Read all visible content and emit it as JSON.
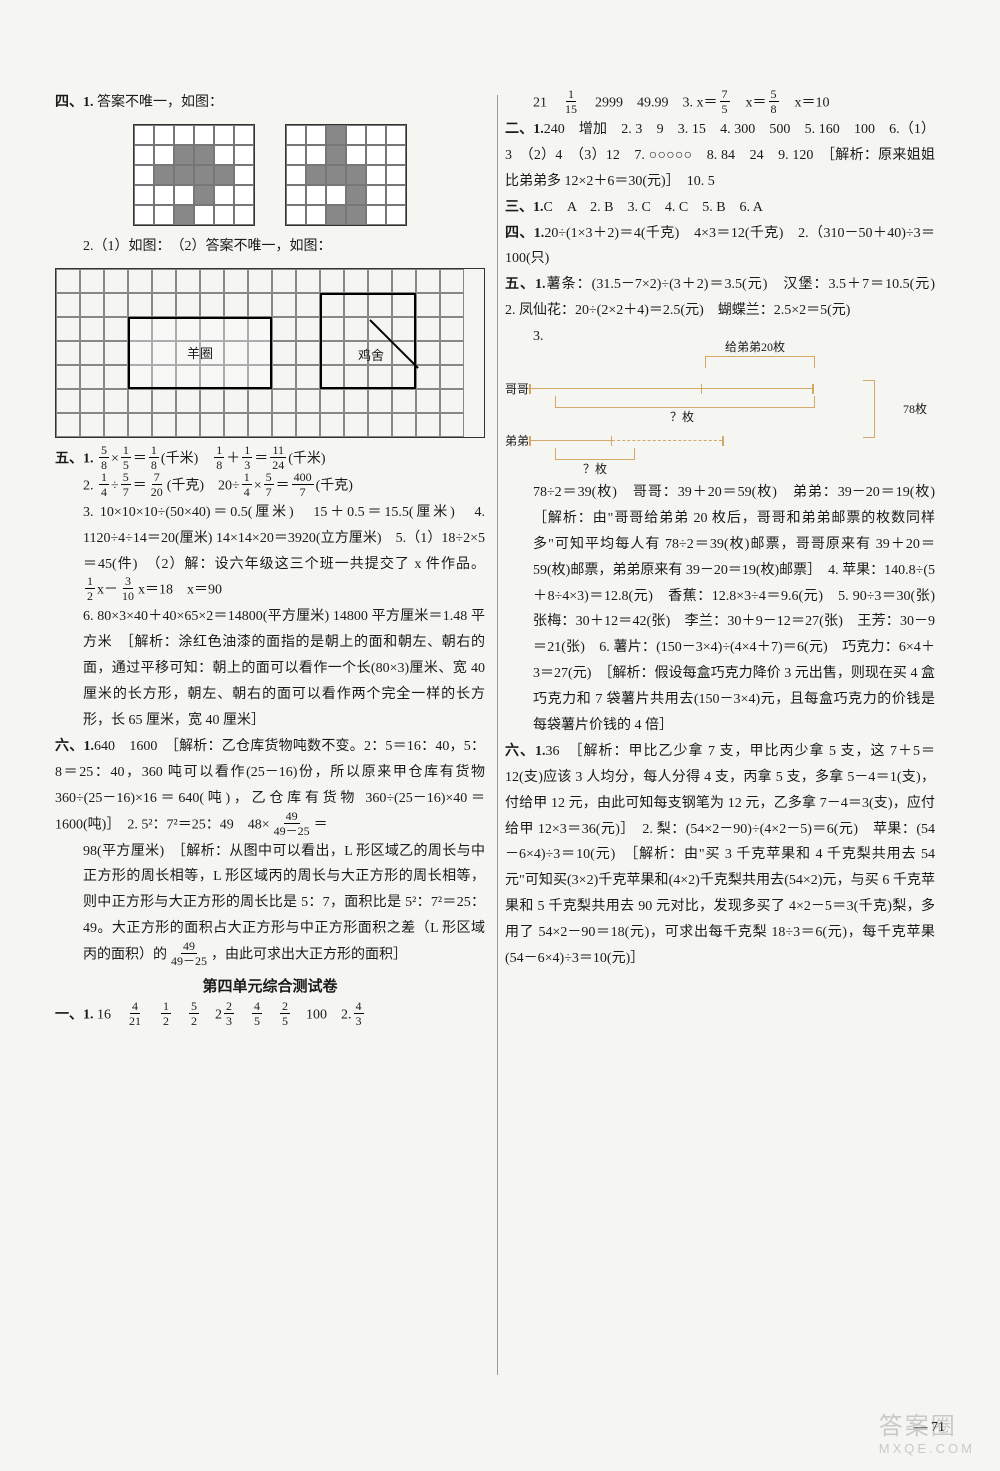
{
  "left": {
    "s4_header": "四、1.",
    "s4_1": "答案不唯一，如图：",
    "s4_2": "2.（1）如图：　（2）答案不唯一，如图：",
    "sheep_label": "羊圈",
    "chicken_label": "鸡舍",
    "s5_header": "五、1.",
    "s5_1a": "(千米)",
    "s5_1b": "(千米)",
    "s5_2a": "2.",
    "s5_2b": "(千克)",
    "s5_2c": "(千克)",
    "s5_3": "3. 10×10×10÷(50×40)＝0.5(厘米)　15＋0.5＝15.5(厘米)　4. 1120÷4÷14＝20(厘米) 14×14×20＝3920(立方厘米)　5.（1）18÷2×5＝45(件)　（2）解：设六年级这三个班一共提交了 x 件作品。",
    "s5_5b": "x＝90",
    "s5_6": "6. 80×3×40＋40×65×2＝14800(平方厘米) 14800 平方厘米＝1.48 平方米　［解析：涂红色油漆的面指的是朝上的面和朝左、朝右的面，通过平移可知：朝上的面可以看作一个长(80×3)厘米、宽 40 厘米的长方形，朝左、朝右的面可以看作两个完全一样的长方形，长 65 厘米，宽 40 厘米］",
    "s6_header": "六、1.",
    "s6_1": "640　1600　［解析：乙仓库货物吨数不变。2：5＝16：40，5：8＝25：40，360 吨可以看作(25－16)份，所以原来甲仓库有货物 360÷(25－16)×16＝640(吨)，乙仓库有货物 360÷(25－16)×40＝1600(吨)］　2. 5²：7²＝25：49",
    "s6_2b": "98(平方厘米)　［解析：从图中可以看出，L 形区域乙的周长与中正方形的周长相等，L 形区域丙的周长与大正方形的周长相等，则中正方形与大正方形的周长比是 5：7，面积比是 5²：7²＝25：49。大正方形的面积占大正方形与中正方形面积之差（L 形区域丙的面积）的",
    "s6_2c": "，由此可求出大正方形的面积］",
    "unit_title": "第四单元综合测试卷",
    "u1_header": "一、1.",
    "u1_1": "16",
    "u1_1_end": "100　2.",
    "u1_mid": "2"
  },
  "right": {
    "r_top": "21",
    "r_top2": "2999　49.99　3.",
    "r_top3": "x＝10",
    "s2_header": "二、1.",
    "s2": "240　增加　2. 3　9　3. 15　4. 300　500　5. 160　100　6.（1）3　（2）4　（3）12　7. ○○○○○　8. 84　24　9. 120　［解析：原来姐姐比弟弟多 12×2＋6＝30(元)］　10. 5",
    "s3_header": "三、1.",
    "s3": "C　A　2. B　3. C　4. C　5. B　6. A",
    "s4_header": "四、1.",
    "s4": "20÷(1×3＋2)＝4(千克)　4×3＝12(千克)　2.（310－50＋40)÷3＝100(只)",
    "s5_header": "五、1.",
    "s5_1": "薯条：(31.5－7×2)÷(3＋2)＝3.5(元)　汉堡：3.5＋7＝10.5(元)　2. 凤仙花：20÷(2×2＋4)＝2.5(元)　蝴蝶兰：2.5×2＝5(元)",
    "s5_3": "3.",
    "diagram_gege": "哥哥",
    "diagram_didi": "弟弟",
    "diagram_give": "给弟弟20枚",
    "diagram_q": "？枚",
    "diagram_total": "78枚",
    "s5_3_text": "78÷2＝39(枚)　哥哥：39＋20＝59(枚)　弟弟：39－20＝19(枚)　［解析：由\"哥哥给弟弟 20 枚后，哥哥和弟弟邮票的枚数同样多\"可知平均每人有 78÷2＝39(枚)邮票，哥哥原来有 39＋20＝59(枚)邮票，弟弟原来有 39－20＝19(枚)邮票］　4. 苹果：140.8÷(5＋8÷4×3)＝12.8(元)　香蕉：12.8×3÷4＝9.6(元)　5. 90÷3＝30(张)　张梅：30＋12＝42(张)　李兰：30＋9－12＝27(张)　王芳：30－9＝21(张)　6. 薯片：(150－3×4)÷(4×4＋7)＝6(元)　巧克力：6×4＋3＝27(元)　［解析：假设每盒巧克力降价 3 元出售，则现在买 4 盒巧克力和 7 袋薯片共用去(150－3×4)元，且每盒巧克力的价钱是每袋薯片价钱的 4 倍］",
    "s6_header": "六、1.",
    "s6": "36　［解析：甲比乙少拿 7 支，甲比丙少拿 5 支，这 7＋5＝12(支)应该 3 人均分，每人分得 4 支，丙拿 5 支，多拿 5－4＝1(支)，付给甲 12 元，由此可知每支钢笔为 12 元，乙多拿 7－4＝3(支)，应付给甲 12×3＝36(元)］　2. 梨：(54×2－90)÷(4×2－5)＝6(元)　苹果：(54－6×4)÷3＝10(元)　［解析：由\"买 3 千克苹果和 4 千克梨共用去 54 元\"可知买(3×2)千克苹果和(4×2)千克梨共用去(54×2)元，与买 6 千克苹果和 5 千克梨共用去 90 元对比，发现多买了 4×2－5＝3(千克)梨，多用了 54×2－90＝18(元)，可求出每千克梨 18÷3＝6(元)，每千克苹果(54－6×4)÷3＝10(元)］"
  },
  "page_number": "— 71",
  "watermark_main": "答案圈",
  "watermark_sub": "MXQE.COM",
  "grid_a_filled": [
    8,
    9,
    13,
    14,
    15,
    16,
    21,
    26
  ],
  "grid_b_filled": [
    2,
    8,
    13,
    14,
    15,
    21,
    26,
    27
  ],
  "fracs": {
    "f58": {
      "n": "5",
      "d": "8"
    },
    "f15": {
      "n": "1",
      "d": "5"
    },
    "f18": {
      "n": "1",
      "d": "8"
    },
    "f13": {
      "n": "1",
      "d": "3"
    },
    "f1124": {
      "n": "11",
      "d": "24"
    },
    "f14": {
      "n": "1",
      "d": "4"
    },
    "f57": {
      "n": "5",
      "d": "7"
    },
    "f720": {
      "n": "7",
      "d": "20"
    },
    "f4007": {
      "n": "400",
      "d": "7"
    },
    "f12": {
      "n": "1",
      "d": "2"
    },
    "f310": {
      "n": "3",
      "d": "10"
    },
    "f4925": {
      "n": "49",
      "d": "49－25"
    },
    "f421": {
      "n": "4",
      "d": "21"
    },
    "f52": {
      "n": "5",
      "d": "2"
    },
    "f23": {
      "n": "2",
      "d": "3"
    },
    "f45": {
      "n": "4",
      "d": "5"
    },
    "f25": {
      "n": "2",
      "d": "5"
    },
    "f43": {
      "n": "4",
      "d": "3"
    },
    "f115": {
      "n": "1",
      "d": "15"
    },
    "f75": {
      "n": "7",
      "d": "5"
    },
    "f58b": {
      "n": "5",
      "d": "8"
    }
  }
}
